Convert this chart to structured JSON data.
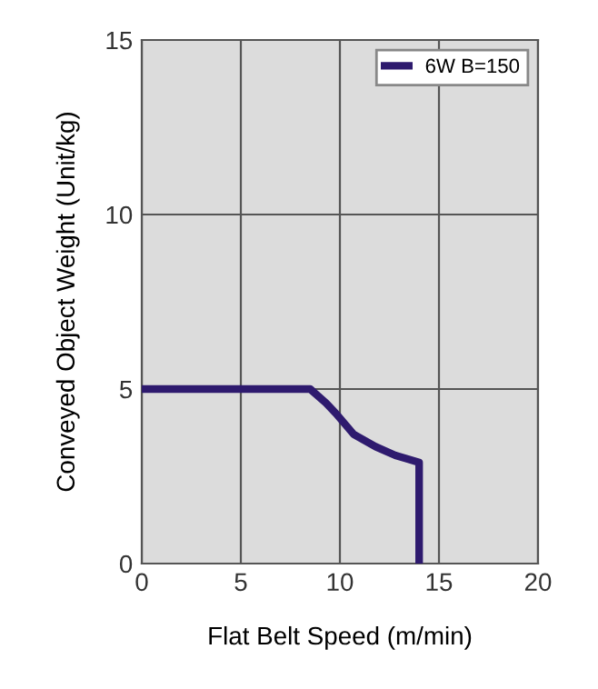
{
  "chart_data": {
    "type": "line",
    "xlabel": "Flat Belt Speed (m/min)",
    "ylabel": "Conveyed Object Weight (Unit/kg)",
    "series": [
      {
        "name": "6W B=150",
        "color": "#2e1a6e",
        "x": [
          0,
          8.5,
          9.3,
          9.8,
          10.7,
          11.8,
          12.8,
          14,
          14
        ],
        "values": [
          5,
          5,
          4.6,
          4.3,
          3.7,
          3.35,
          3.1,
          2.9,
          0
        ]
      }
    ],
    "xlim": [
      0,
      20
    ],
    "ylim": [
      0,
      15
    ],
    "xticks": [
      0,
      5,
      10,
      15,
      20
    ],
    "yticks": [
      0,
      5,
      10,
      15
    ],
    "grid": true,
    "legend": "top right",
    "marker": "none",
    "line_style": "solid"
  }
}
